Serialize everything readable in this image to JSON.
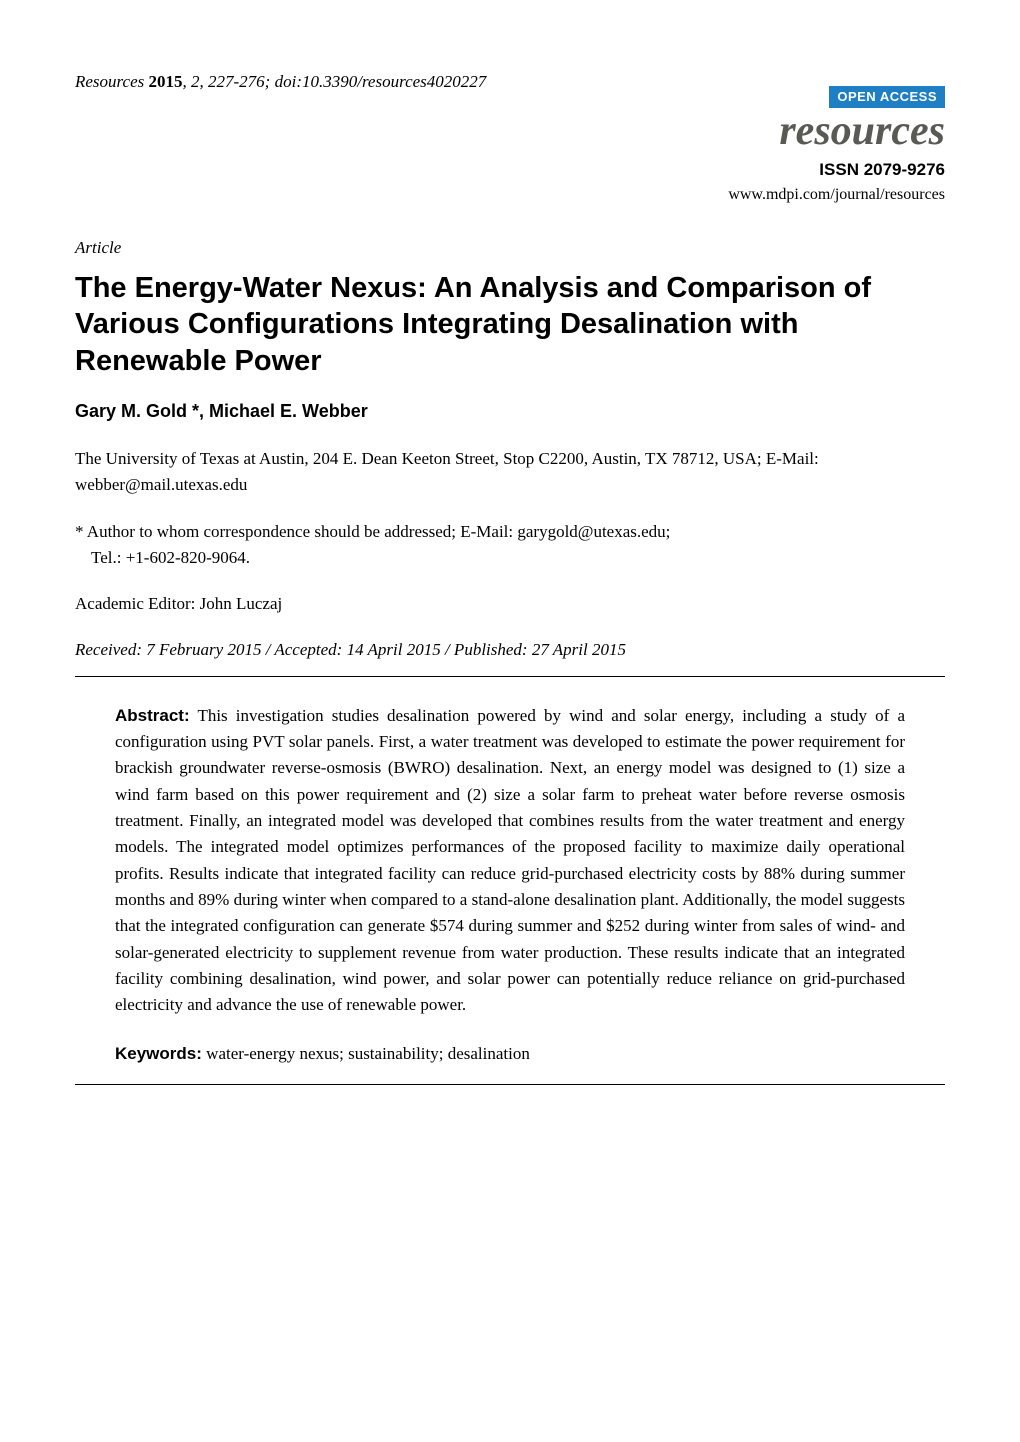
{
  "header": {
    "journal_name": "Resources",
    "year": "2015",
    "volume_issue": "2",
    "pages": "227-276",
    "doi": "doi:10.3390/resources4020227"
  },
  "logo": {
    "open_access": "OPEN ACCESS",
    "journal_logo": "resources",
    "issn": "ISSN 2079-9276",
    "url": "www.mdpi.com/journal/resources"
  },
  "article_type": "Article",
  "title": "The Energy-Water Nexus: An Analysis and Comparison of Various Configurations Integrating Desalination with Renewable Power",
  "authors": "Gary M. Gold *, Michael E. Webber",
  "affiliation": "The University of Texas at Austin, 204 E. Dean Keeton Street, Stop C2200, Austin, TX 78712, USA; E-Mail: webber@mail.utexas.edu",
  "correspondence": {
    "line1": "* Author to whom correspondence should be addressed; E-Mail: garygold@utexas.edu;",
    "line2": "Tel.: +1-602-820-9064."
  },
  "editor": "Academic Editor: John Luczaj",
  "dates": "Received: 7 February 2015 / Accepted: 14 April 2015 / Published: 27 April 2015",
  "abstract": {
    "label": "Abstract:",
    "text": "This investigation studies desalination powered by wind and solar energy, including a study of a configuration using PVT solar panels. First, a water treatment was developed to estimate the power requirement for brackish groundwater reverse-osmosis (BWRO) desalination. Next, an energy model was designed to (1) size a wind farm based on this power requirement and (2) size a solar farm to preheat water before reverse osmosis treatment. Finally, an integrated model was developed that combines results from the water treatment and energy models. The integrated model optimizes performances of the proposed facility to maximize daily operational profits. Results indicate that integrated facility can reduce grid-purchased electricity costs by 88% during summer months and 89% during winter when compared to a stand-alone desalination plant. Additionally, the model suggests that the integrated configuration can generate $574 during summer and $252 during winter from sales of wind- and solar-generated electricity to supplement revenue from water production. These results indicate that an integrated facility combining desalination, wind power, and solar power can potentially reduce reliance on grid-purchased electricity and advance the use of renewable power."
  },
  "keywords": {
    "label": "Keywords:",
    "text": "water-energy nexus; sustainability; desalination"
  }
}
